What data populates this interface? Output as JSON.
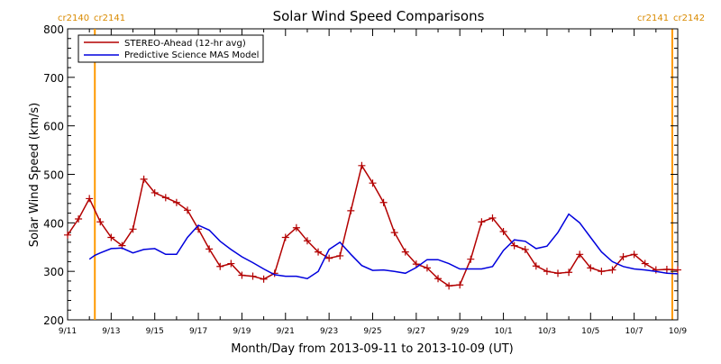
{
  "chart_data": {
    "type": "line",
    "title": "Solar Wind Speed Comparisons",
    "xlabel": "Month/Day from 2013-09-11 to 2013-10-09 (UT)",
    "ylabel": "Solar Wind Speed (km/s)",
    "xlim": [
      "2013-09-11",
      "2013-10-09"
    ],
    "ylim": [
      200,
      800
    ],
    "yticks": [
      200,
      300,
      400,
      500,
      600,
      700,
      800
    ],
    "xtick_labels": [
      "9/11",
      "9/13",
      "9/15",
      "9/17",
      "9/19",
      "9/21",
      "9/23",
      "9/25",
      "9/27",
      "9/29",
      "10/1",
      "10/3",
      "10/5",
      "10/7",
      "10/9"
    ],
    "legend_position": "top-left",
    "rotation_markers": [
      {
        "x": "2013-09-12 06:00",
        "left_label": "cr2140",
        "right_label": "cr2141",
        "side": "left"
      },
      {
        "x": "2013-10-08 18:00",
        "left_label": "cr2141",
        "right_label": "cr2142",
        "side": "right"
      }
    ],
    "colors": {
      "stereo": "#b30000",
      "model": "#0000dd",
      "rotation": "#ff9900"
    },
    "series": [
      {
        "name": "STEREO-Ahead (12-hr avg)",
        "color": "#b30000",
        "marker": "plus",
        "x": [
          "2013-09-11 00:00",
          "2013-09-11 12:00",
          "2013-09-12 00:00",
          "2013-09-12 12:00",
          "2013-09-13 00:00",
          "2013-09-13 12:00",
          "2013-09-14 00:00",
          "2013-09-14 12:00",
          "2013-09-15 00:00",
          "2013-09-15 12:00",
          "2013-09-16 00:00",
          "2013-09-16 12:00",
          "2013-09-17 00:00",
          "2013-09-17 12:00",
          "2013-09-18 00:00",
          "2013-09-18 12:00",
          "2013-09-19 00:00",
          "2013-09-19 12:00",
          "2013-09-20 00:00",
          "2013-09-20 12:00",
          "2013-09-21 00:00",
          "2013-09-21 12:00",
          "2013-09-22 00:00",
          "2013-09-22 12:00",
          "2013-09-23 00:00",
          "2013-09-23 12:00",
          "2013-09-24 00:00",
          "2013-09-24 12:00",
          "2013-09-25 00:00",
          "2013-09-25 12:00",
          "2013-09-26 00:00",
          "2013-09-26 12:00",
          "2013-09-27 00:00",
          "2013-09-27 12:00",
          "2013-09-28 00:00",
          "2013-09-28 12:00",
          "2013-09-29 00:00",
          "2013-09-29 12:00",
          "2013-09-30 00:00",
          "2013-09-30 12:00",
          "2013-10-01 00:00",
          "2013-10-01 12:00",
          "2013-10-02 00:00",
          "2013-10-02 12:00",
          "2013-10-03 00:00",
          "2013-10-03 12:00",
          "2013-10-04 00:00",
          "2013-10-04 12:00",
          "2013-10-05 00:00",
          "2013-10-05 12:00",
          "2013-10-06 00:00",
          "2013-10-06 12:00",
          "2013-10-07 00:00",
          "2013-10-07 12:00",
          "2013-10-08 00:00",
          "2013-10-08 12:00",
          "2013-10-09 00:00"
        ],
        "y": [
          375,
          408,
          450,
          402,
          370,
          353,
          387,
          490,
          462,
          452,
          442,
          426,
          387,
          346,
          310,
          316,
          292,
          290,
          284,
          296,
          370,
          390,
          363,
          340,
          327,
          332,
          425,
          518,
          482,
          442,
          380,
          340,
          315,
          307,
          285,
          270,
          272,
          325,
          402,
          410,
          382,
          353,
          345,
          311,
          300,
          296,
          298,
          335,
          307,
          300,
          303,
          330,
          335,
          316,
          303,
          304,
          303
        ]
      },
      {
        "name": "Predictive Science MAS Model",
        "color": "#0000dd",
        "marker": "none",
        "x": [
          "2013-09-12 00:00",
          "2013-09-12 06:00",
          "2013-09-12 12:00",
          "2013-09-13 00:00",
          "2013-09-13 12:00",
          "2013-09-14 00:00",
          "2013-09-14 12:00",
          "2013-09-15 00:00",
          "2013-09-15 12:00",
          "2013-09-16 00:00",
          "2013-09-16 12:00",
          "2013-09-17 00:00",
          "2013-09-17 12:00",
          "2013-09-18 00:00",
          "2013-09-18 12:00",
          "2013-09-19 00:00",
          "2013-09-19 12:00",
          "2013-09-20 00:00",
          "2013-09-20 12:00",
          "2013-09-21 00:00",
          "2013-09-21 12:00",
          "2013-09-22 00:00",
          "2013-09-22 12:00",
          "2013-09-23 00:00",
          "2013-09-23 12:00",
          "2013-09-24 00:00",
          "2013-09-24 12:00",
          "2013-09-25 00:00",
          "2013-09-25 12:00",
          "2013-09-26 00:00",
          "2013-09-26 12:00",
          "2013-09-27 00:00",
          "2013-09-27 12:00",
          "2013-09-28 00:00",
          "2013-09-28 12:00",
          "2013-09-29 00:00",
          "2013-09-29 12:00",
          "2013-09-30 00:00",
          "2013-09-30 12:00",
          "2013-10-01 00:00",
          "2013-10-01 12:00",
          "2013-10-02 00:00",
          "2013-10-02 12:00",
          "2013-10-03 00:00",
          "2013-10-03 12:00",
          "2013-10-04 00:00",
          "2013-10-04 12:00",
          "2013-10-05 00:00",
          "2013-10-05 12:00",
          "2013-10-06 00:00",
          "2013-10-06 12:00",
          "2013-10-07 00:00",
          "2013-10-07 12:00",
          "2013-10-08 00:00",
          "2013-10-08 12:00",
          "2013-10-09 00:00"
        ],
        "y": [
          325,
          333,
          338,
          347,
          348,
          338,
          345,
          347,
          335,
          335,
          370,
          395,
          385,
          362,
          345,
          330,
          318,
          305,
          293,
          290,
          290,
          285,
          300,
          345,
          360,
          335,
          312,
          302,
          303,
          300,
          296,
          308,
          324,
          324,
          316,
          305,
          305,
          305,
          310,
          343,
          365,
          362,
          347,
          352,
          380,
          418,
          400,
          370,
          340,
          320,
          310,
          305,
          303,
          300,
          296,
          295
        ]
      }
    ]
  }
}
